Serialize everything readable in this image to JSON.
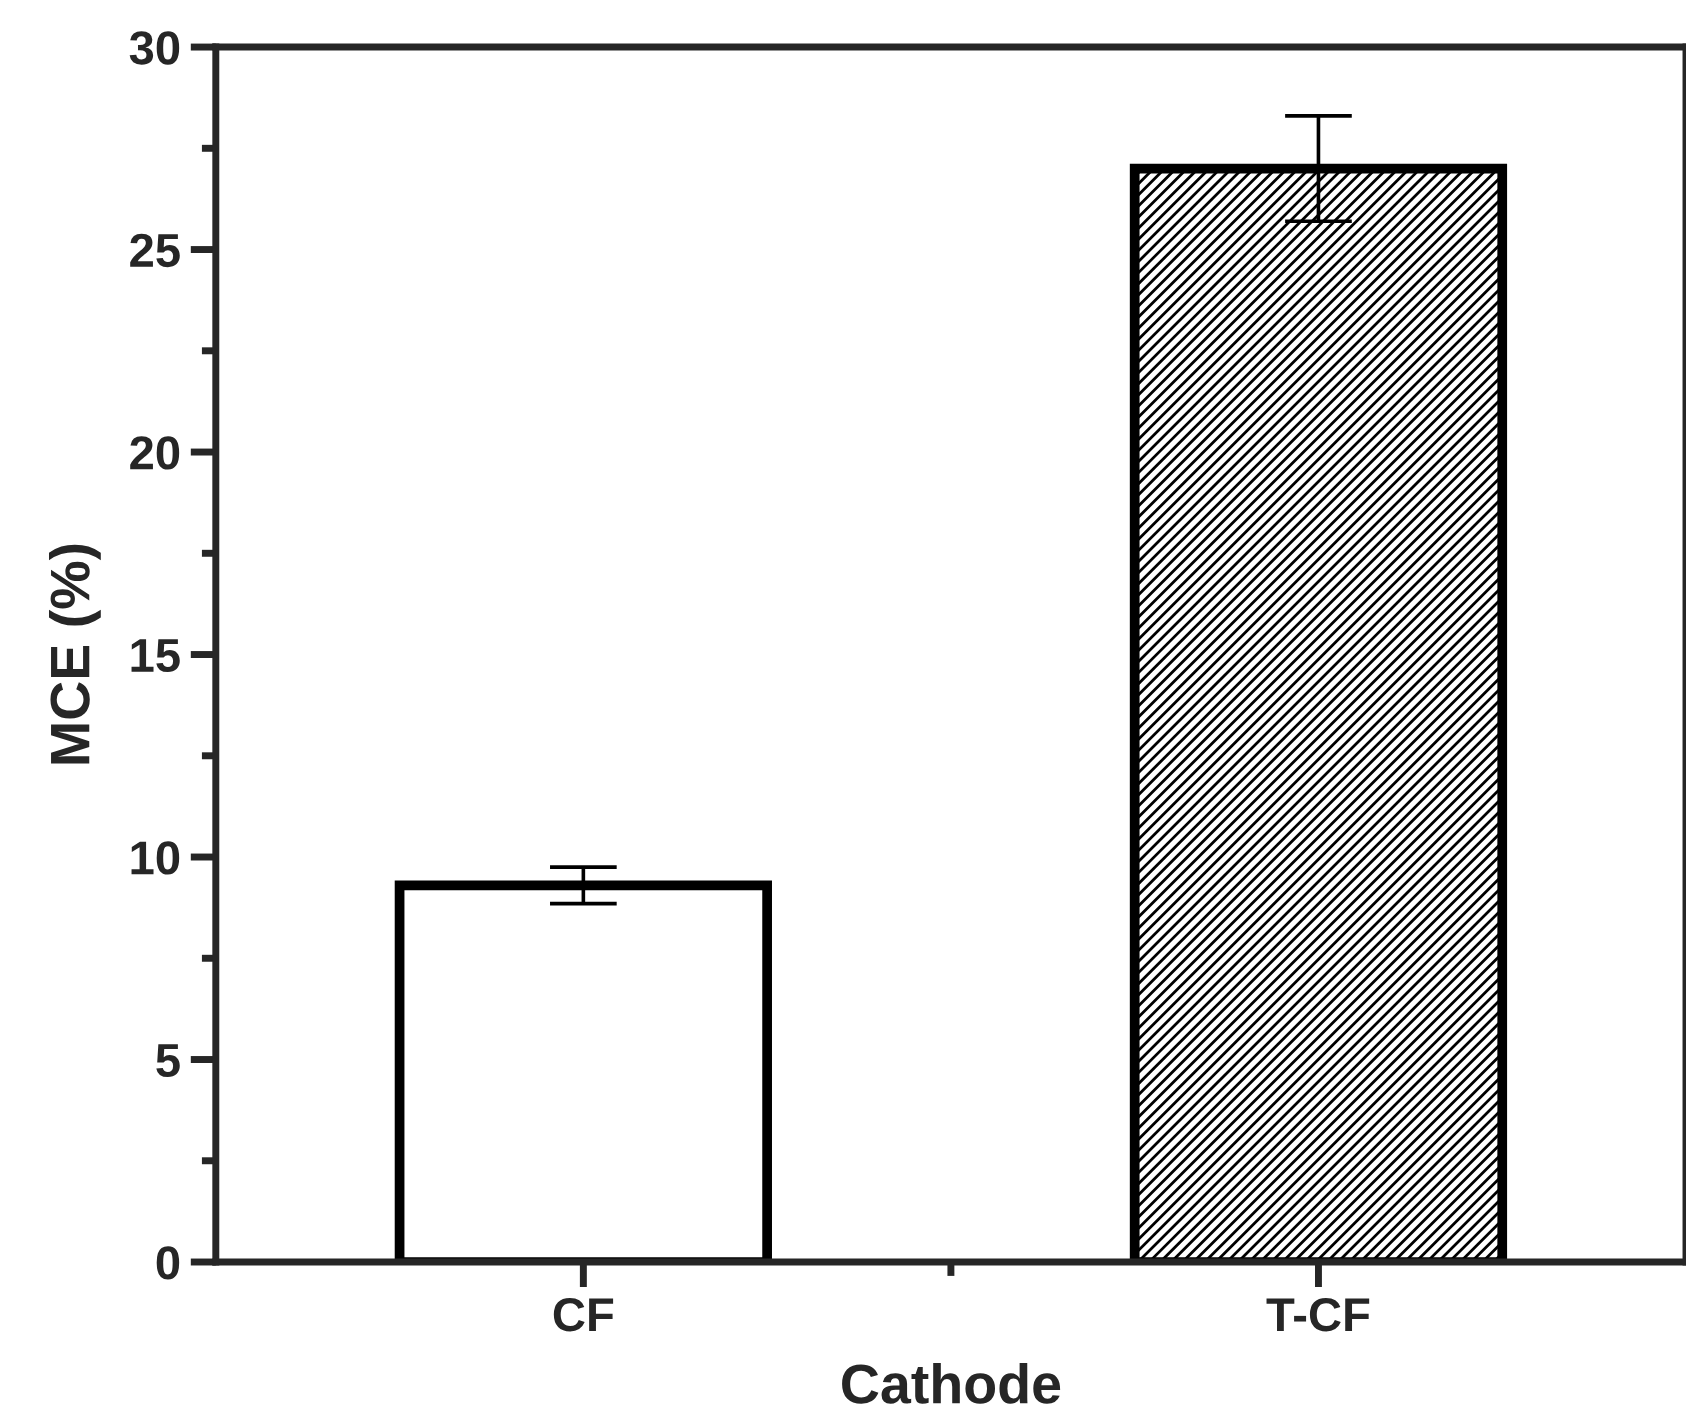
{
  "chart_data": {
    "type": "bar",
    "xlabel": "Cathode",
    "ylabel": "MCE (%)",
    "categories": [
      "CF",
      "T-CF"
    ],
    "values": [
      9.3,
      27.0
    ],
    "errors": [
      0.45,
      1.3
    ],
    "colors": [
      "#ffffff",
      "#000000"
    ],
    "ylim": [
      0,
      30
    ],
    "yticks": [
      0,
      5,
      10,
      15,
      20,
      25,
      30
    ],
    "grid": false
  }
}
